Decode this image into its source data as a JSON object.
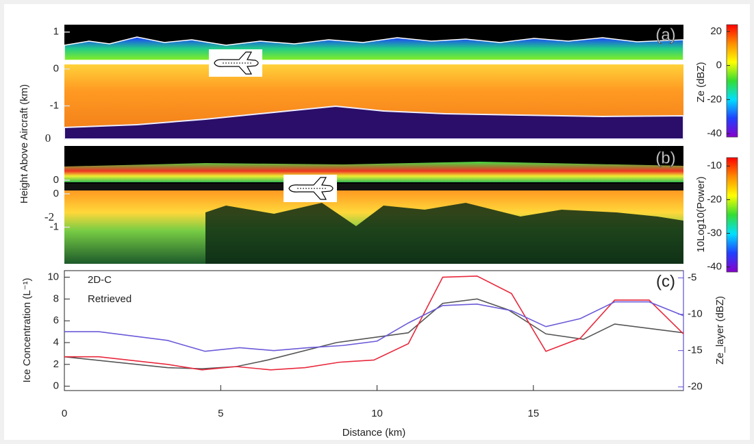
{
  "chart_data": [
    {
      "type": "image",
      "label": "(a)",
      "ylabel": "Height Above Aircraft (km)",
      "panels": [
        {
          "ylim": [
            -1.9,
            1.2
          ],
          "yticks": [
            1,
            0,
            -1
          ]
        }
      ],
      "annotations": [
        "0"
      ],
      "colorbar": {
        "label": "Ze (dBZ)",
        "lim": [
          -42,
          24
        ],
        "ticks": [
          20,
          0,
          -20,
          -40
        ],
        "colors": [
          "#ff0000",
          "#ff8c00",
          "#ffff00",
          "#33dd33",
          "#00e0ff",
          "#2040ff",
          "#8800cc"
        ]
      }
    },
    {
      "type": "image",
      "label": "(b)",
      "panels": [
        {
          "ylim": [
            -0.1,
            1.0
          ],
          "yticks": [
            0
          ]
        },
        {
          "ylim": [
            -2.1,
            0.1
          ],
          "yticks": [
            0,
            -1
          ]
        }
      ],
      "annotations": [
        "-2"
      ],
      "colorbar": {
        "label": "10Log10(Power)",
        "lim": [
          -41.5,
          -7.5
        ],
        "ticks": [
          -10,
          -20,
          -30,
          -40
        ],
        "colors": [
          "#ff0000",
          "#ff8c00",
          "#ffff00",
          "#33dd33",
          "#00e0ff",
          "#2040ff",
          "#8800cc"
        ]
      }
    },
    {
      "type": "line",
      "label": "(c)",
      "xlabel": "Distance (km)",
      "ylabel": "Ice Concentration (L⁻¹)",
      "y2label": "Ze_layer (dBZ)",
      "legend": "upper left",
      "xlim": [
        0,
        19.8
      ],
      "xticks": [
        0,
        5,
        10,
        15
      ],
      "ylim": [
        -0.4,
        10.6
      ],
      "yticks": [
        0,
        2,
        4,
        6,
        8,
        10
      ],
      "y2lim": [
        -20.5,
        -4
      ],
      "y2ticks": [
        -5,
        -10,
        -15,
        -20
      ],
      "y2color": "#5b4fd0",
      "series": [
        {
          "name": "2D-C",
          "color": "#555555",
          "x": [
            0,
            3.3,
            4.4,
            5.5,
            6.5,
            8.7,
            11,
            12.1,
            13.2,
            14.2,
            15.4,
            16.6,
            17.6,
            19.8
          ],
          "values": [
            2.7,
            1.7,
            1.6,
            1.8,
            2.4,
            4.0,
            4.9,
            7.6,
            8.0,
            7.0,
            4.8,
            4.3,
            5.7,
            4.9
          ]
        },
        {
          "name": "Retrieved",
          "color": "#e8283c",
          "x": [
            0,
            1.1,
            3.3,
            4.4,
            5.5,
            6.6,
            7.7,
            8.8,
            9.9,
            11,
            12.1,
            13.2,
            14.3,
            15.4,
            16.5,
            17.6,
            18.7,
            19.8
          ],
          "values": [
            2.7,
            2.7,
            2.0,
            1.5,
            1.8,
            1.5,
            1.7,
            2.2,
            2.4,
            3.9,
            10.0,
            10.1,
            8.5,
            3.2,
            4.4,
            7.9,
            7.9,
            4.8
          ]
        },
        {
          "color": "#6a5ad8",
          "axis": "y2",
          "x": [
            0,
            1.1,
            3.3,
            4.5,
            5.6,
            6.7,
            7.8,
            8.9,
            10,
            11,
            12.1,
            13.2,
            14.3,
            15.4,
            16.5,
            17.6,
            18.7,
            19.8
          ],
          "values": [
            -12.4,
            -12.4,
            -13.6,
            -15.1,
            -14.6,
            -15.0,
            -14.6,
            -14.3,
            -13.7,
            -11.2,
            -8.8,
            -8.6,
            -9.5,
            -11.7,
            -10.6,
            -8.3,
            -8.3,
            -10.2
          ]
        }
      ]
    }
  ]
}
